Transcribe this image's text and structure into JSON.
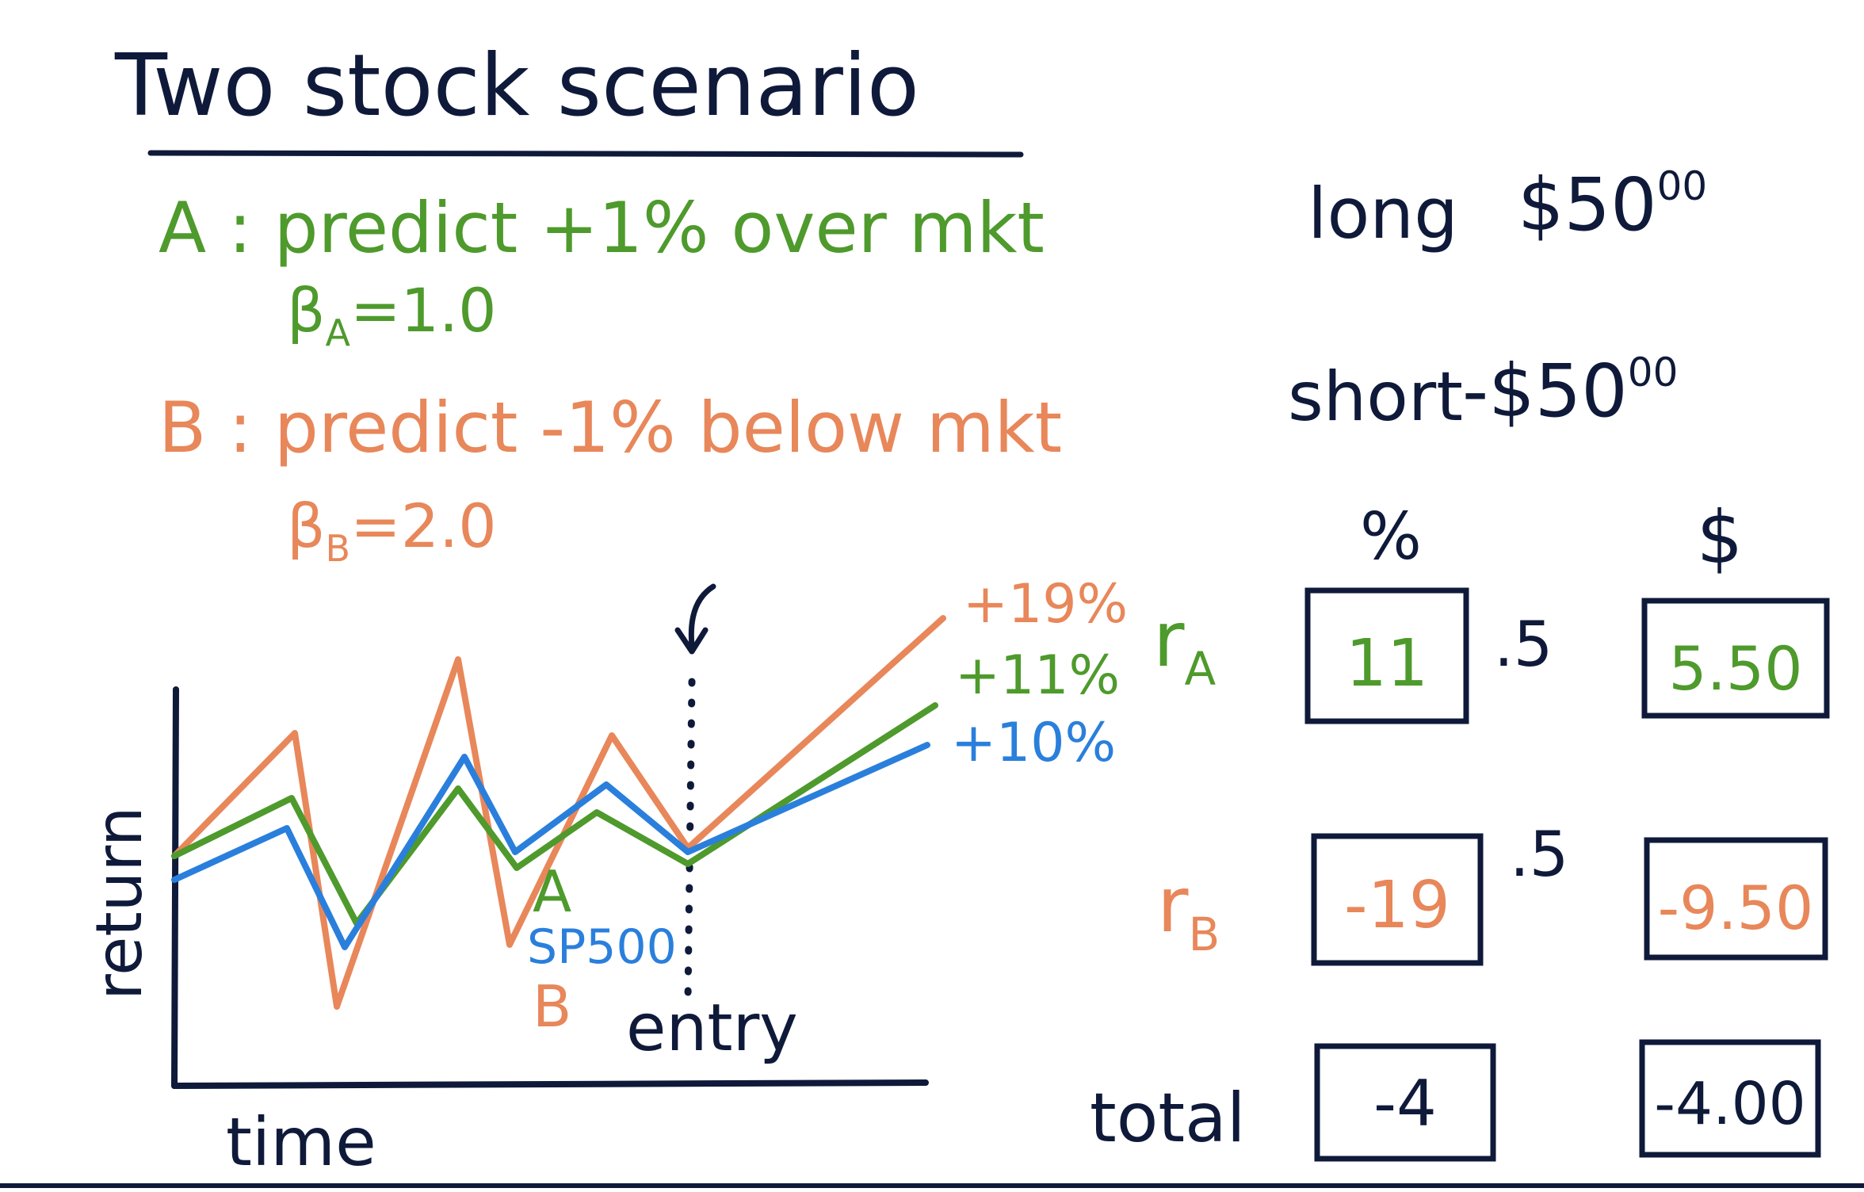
{
  "colors": {
    "ink": "#0f1a3a",
    "green": "#4e9a2c",
    "orange": "#e8875a",
    "blue": "#2a7fdc"
  },
  "title": "Two stock scenario",
  "stock_a": {
    "line1": "A : predict +1% over mkt",
    "beta_symbol": "β",
    "beta_sub": "A",
    "beta_value": "=1.0"
  },
  "stock_b": {
    "line1": "B : predict -1% below mkt",
    "beta_symbol": "β",
    "beta_sub": "B",
    "beta_value": "=2.0"
  },
  "positions": {
    "long_label": "long",
    "long_amount": "$50",
    "long_cents": "00",
    "short_label": "short",
    "short_amount": "-$50",
    "short_cents": "00"
  },
  "chart_data": {
    "type": "line",
    "xlabel": "time",
    "ylabel": "return",
    "entry_label": "entry",
    "series": [
      {
        "name": "A",
        "end_label": "+11%",
        "color": "#4e9a2c"
      },
      {
        "name": "SP500",
        "end_label": "+10%",
        "color": "#2a7fdc"
      },
      {
        "name": "B",
        "end_label": "+19%",
        "color": "#e8875a"
      }
    ]
  },
  "table": {
    "header_pct": "%",
    "header_dollar": "$",
    "row_a": {
      "label_r": "r",
      "label_sub": "A",
      "pct": "11",
      "weight": ".5",
      "dollar": "5.50"
    },
    "row_b": {
      "label_r": "r",
      "label_sub": "B",
      "pct": "-19",
      "weight": ".5",
      "dollar": "-9.50"
    },
    "row_total": {
      "label": "total",
      "pct": "-4",
      "dollar": "-4.00"
    }
  }
}
